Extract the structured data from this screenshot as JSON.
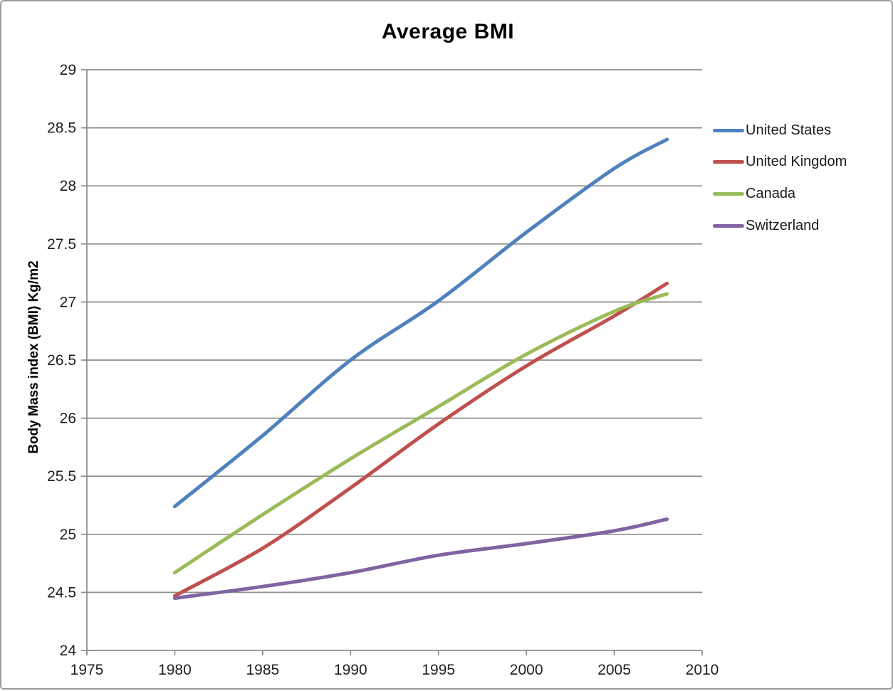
{
  "chart_data": {
    "type": "line",
    "title": "Average BMI",
    "xlabel": "",
    "ylabel": "Body Mass index (BMI) Kg/m2",
    "x": [
      1980,
      1985,
      1990,
      1995,
      2000,
      2005,
      2008
    ],
    "series": [
      {
        "name": "United States",
        "color": "#4F81BD",
        "values": [
          25.24,
          25.85,
          26.5,
          27.01,
          27.6,
          28.15,
          28.4
        ]
      },
      {
        "name": "United Kingdom",
        "color": "#C0504D",
        "values": [
          24.47,
          24.88,
          25.4,
          25.95,
          26.45,
          26.88,
          27.16
        ]
      },
      {
        "name": "Canada",
        "color": "#9BBB59",
        "values": [
          24.67,
          25.17,
          25.65,
          26.1,
          26.55,
          26.92,
          27.07
        ]
      },
      {
        "name": "Switzerland",
        "color": "#8064A2",
        "values": [
          24.45,
          24.55,
          24.67,
          24.82,
          24.92,
          25.03,
          25.13
        ]
      }
    ],
    "xlim": [
      1975,
      2010
    ],
    "ylim": [
      24,
      29
    ],
    "x_ticks": [
      1975,
      1980,
      1985,
      1990,
      1995,
      2000,
      2005,
      2010
    ],
    "y_ticks": [
      24,
      24.5,
      25,
      25.5,
      26,
      26.5,
      27,
      27.5,
      28,
      28.5,
      29
    ],
    "grid": "horizontal",
    "legend_position": "right",
    "line_smoothing": true,
    "colors": {
      "gridline": "#8c8c8c",
      "axis": "#8c8c8c",
      "tick_text": "#1f1f1f",
      "title_text": "#000000"
    }
  }
}
